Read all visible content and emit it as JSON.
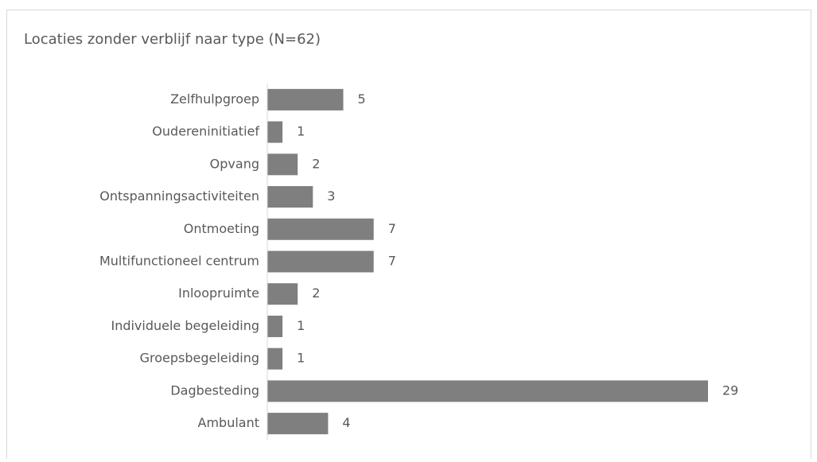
{
  "chart_data": {
    "type": "bar",
    "orientation": "horizontal",
    "title": "Locaties zonder verblijf naar type (N=62)",
    "categories": [
      "Zelfhulpgroep",
      "Oudereninitiatief",
      "Opvang",
      "Ontspanningsactiviteiten",
      "Ontmoeting",
      "Multifunctioneel centrum",
      "Inloopruimte",
      "Individuele begeleiding",
      "Groepsbegeleiding",
      "Dagbesteding",
      "Ambulant"
    ],
    "values": [
      5,
      1,
      2,
      3,
      7,
      7,
      2,
      1,
      1,
      29,
      4
    ],
    "color": "#7f7f7f"
  }
}
